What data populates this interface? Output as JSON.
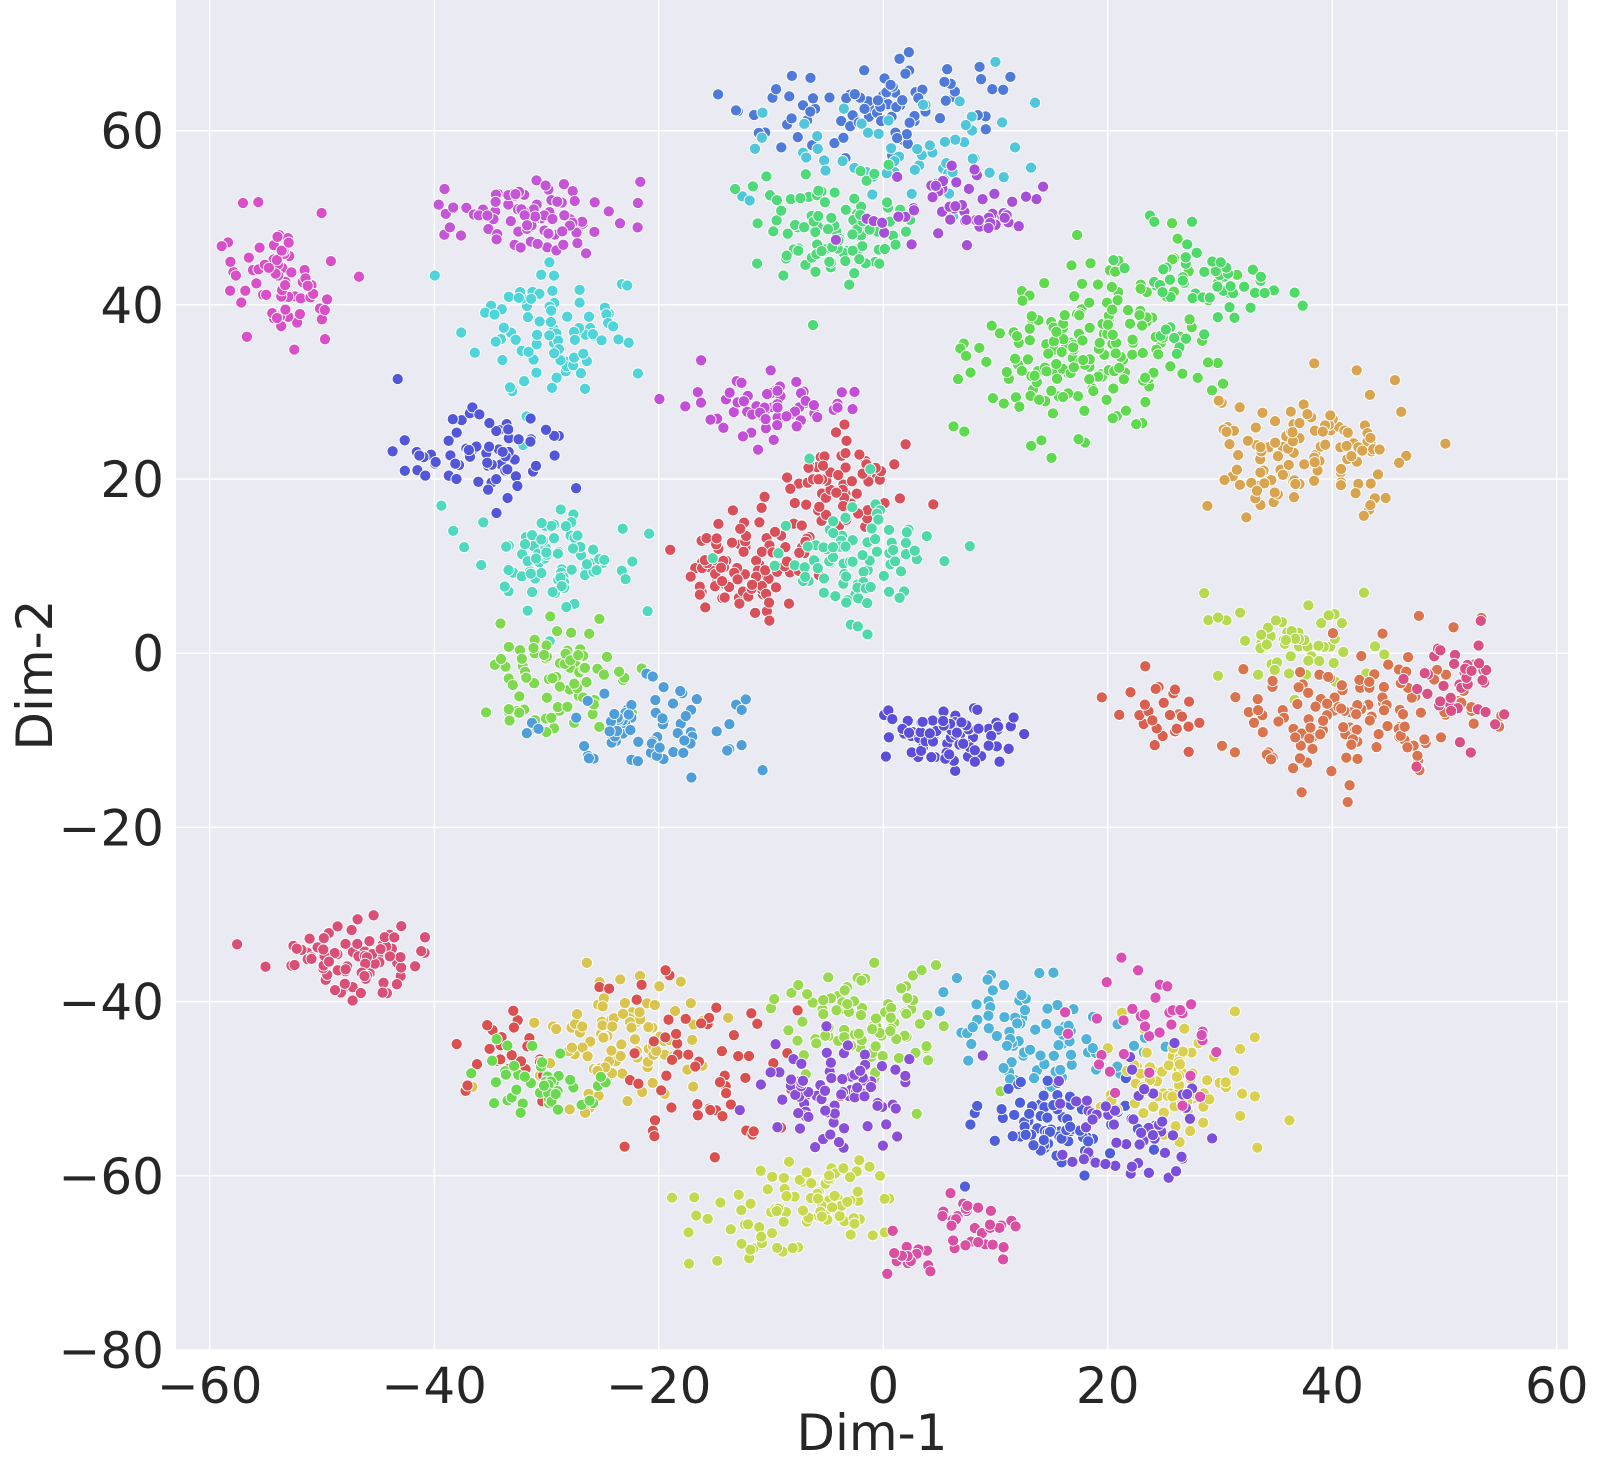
{
  "chart_data": {
    "type": "scatter",
    "title": "",
    "xlabel": "Dim-1",
    "ylabel": "Dim-2",
    "xlim": [
      -63,
      61
    ],
    "ylim": [
      -80,
      75
    ],
    "xticks": [
      -60,
      -40,
      -20,
      0,
      20,
      40,
      60
    ],
    "yticks": [
      -80,
      -60,
      -40,
      -20,
      0,
      20,
      40,
      60
    ],
    "xtick_labels": [
      "−60",
      "−40",
      "−20",
      "0",
      "20",
      "40",
      "60"
    ],
    "ytick_labels": [
      "−80",
      "−60",
      "−40",
      "−20",
      "0",
      "20",
      "40",
      "60"
    ],
    "grid": true,
    "legend": "none",
    "background": "#eaeaf2",
    "grid_color": "#ffffff",
    "marker_edge_color": "#ffffff",
    "clusters": [
      {
        "color": "#d94fc8",
        "center": [
          -53,
          42
        ],
        "spread": [
          2.6,
          3.2
        ],
        "n": 75
      },
      {
        "color": "#c355d6",
        "center": [
          -31,
          50
        ],
        "spread": [
          3.6,
          2.2
        ],
        "n": 85
      },
      {
        "color": "#4fd4d9",
        "center": [
          -30,
          37
        ],
        "spread": [
          3.6,
          3.4
        ],
        "n": 85
      },
      {
        "color": "#5257d9",
        "center": [
          -36,
          23
        ],
        "spread": [
          3.4,
          2.4
        ],
        "n": 70
      },
      {
        "color": "#4fd9c0",
        "center": [
          -30,
          11
        ],
        "spread": [
          3.6,
          2.6
        ],
        "n": 85
      },
      {
        "color": "#7ed94f",
        "center": [
          -29,
          -3
        ],
        "spread": [
          3.4,
          3.2
        ],
        "n": 80
      },
      {
        "color": "#4f9ed9",
        "center": [
          -21,
          -8
        ],
        "spread": [
          4.0,
          2.6
        ],
        "n": 75
      },
      {
        "color": "#d94f76",
        "center": [
          -47,
          -35
        ],
        "spread": [
          3.2,
          2.0
        ],
        "n": 80
      },
      {
        "color": "#d94f5a",
        "center": [
          -12,
          10
        ],
        "spread": [
          3.2,
          3.0
        ],
        "n": 95
      },
      {
        "color": "#d94f5a",
        "center": [
          -4,
          19
        ],
        "spread": [
          3.2,
          3.0
        ],
        "n": 70
      },
      {
        "color": "#c34fd9",
        "center": [
          -11,
          28
        ],
        "spread": [
          3.4,
          2.0
        ],
        "n": 65
      },
      {
        "color": "#4fd9a8",
        "center": [
          -2,
          11
        ],
        "spread": [
          3.6,
          3.4
        ],
        "n": 85
      },
      {
        "color": "#4f7ad9",
        "center": [
          0,
          63
        ],
        "spread": [
          5.5,
          2.4
        ],
        "n": 90
      },
      {
        "color": "#4fc6d9",
        "center": [
          2,
          57
        ],
        "spread": [
          6.0,
          3.2
        ],
        "n": 60
      },
      {
        "color": "#4fd97a",
        "center": [
          -5,
          49
        ],
        "spread": [
          3.6,
          3.6
        ],
        "n": 100
      },
      {
        "color": "#a84fd9",
        "center": [
          6,
          50
        ],
        "spread": [
          3.4,
          2.2
        ],
        "n": 55
      },
      {
        "color": "#5fd94f",
        "center": [
          16,
          33
        ],
        "spread": [
          4.4,
          5.0
        ],
        "n": 110
      },
      {
        "color": "#5fd94f",
        "center": [
          22,
          38
        ],
        "spread": [
          3.8,
          4.0
        ],
        "n": 80
      },
      {
        "color": "#4fd968",
        "center": [
          29,
          42
        ],
        "spread": [
          3.2,
          3.0
        ],
        "n": 60
      },
      {
        "color": "#d9a44f",
        "center": [
          38,
          23
        ],
        "spread": [
          4.8,
          4.0
        ],
        "n": 120
      },
      {
        "color": "#b5d94f",
        "center": [
          37,
          1
        ],
        "spread": [
          4.2,
          2.4
        ],
        "n": 60
      },
      {
        "color": "#d9744f",
        "center": [
          42,
          -7
        ],
        "spread": [
          5.6,
          3.8
        ],
        "n": 140
      },
      {
        "color": "#d94f86",
        "center": [
          51,
          -5
        ],
        "spread": [
          2.2,
          3.0
        ],
        "n": 40
      },
      {
        "color": "#d9604f",
        "center": [
          25,
          -7
        ],
        "spread": [
          2.2,
          2.2
        ],
        "n": 25
      },
      {
        "color": "#5b4fd9",
        "center": [
          6,
          -9
        ],
        "spread": [
          3.2,
          1.6
        ],
        "n": 75
      },
      {
        "color": "#d9c44f",
        "center": [
          -23,
          -44
        ],
        "spread": [
          4.0,
          3.4
        ],
        "n": 100
      },
      {
        "color": "#d9504f",
        "center": [
          -17,
          -48
        ],
        "spread": [
          4.0,
          5.0
        ],
        "n": 60
      },
      {
        "color": "#d9504f",
        "center": [
          -34,
          -47
        ],
        "spread": [
          2.0,
          3.2
        ],
        "n": 25
      },
      {
        "color": "#6ad94f",
        "center": [
          -30,
          -50
        ],
        "spread": [
          3.0,
          2.4
        ],
        "n": 45
      },
      {
        "color": "#9ad94f",
        "center": [
          -1,
          -43
        ],
        "spread": [
          3.6,
          3.2
        ],
        "n": 90
      },
      {
        "color": "#8a4fd9",
        "center": [
          -4,
          -50
        ],
        "spread": [
          3.4,
          3.0
        ],
        "n": 85
      },
      {
        "color": "#c9d94f",
        "center": [
          -5,
          -63
        ],
        "spread": [
          3.4,
          2.4
        ],
        "n": 70
      },
      {
        "color": "#c2d94f",
        "center": [
          -12,
          -66
        ],
        "spread": [
          3.0,
          2.4
        ],
        "n": 25
      },
      {
        "color": "#4fb2d9",
        "center": [
          14,
          -44
        ],
        "spread": [
          4.0,
          3.2
        ],
        "n": 85
      },
      {
        "color": "#4f5ed9",
        "center": [
          15,
          -54
        ],
        "spread": [
          3.4,
          2.6
        ],
        "n": 80
      },
      {
        "color": "#d9d04f",
        "center": [
          27,
          -49
        ],
        "spread": [
          3.2,
          3.4
        ],
        "n": 80
      },
      {
        "color": "#7a4fd9",
        "center": [
          22,
          -54
        ],
        "spread": [
          3.0,
          3.4
        ],
        "n": 55
      },
      {
        "color": "#d94fb5",
        "center": [
          24,
          -44
        ],
        "spread": [
          3.6,
          3.0
        ],
        "n": 35
      },
      {
        "color": "#d94fa3",
        "center": [
          8,
          -66
        ],
        "spread": [
          2.0,
          2.0
        ],
        "n": 30
      },
      {
        "color": "#d94fa3",
        "center": [
          2,
          -69
        ],
        "spread": [
          1.6,
          1.2
        ],
        "n": 15
      }
    ]
  }
}
